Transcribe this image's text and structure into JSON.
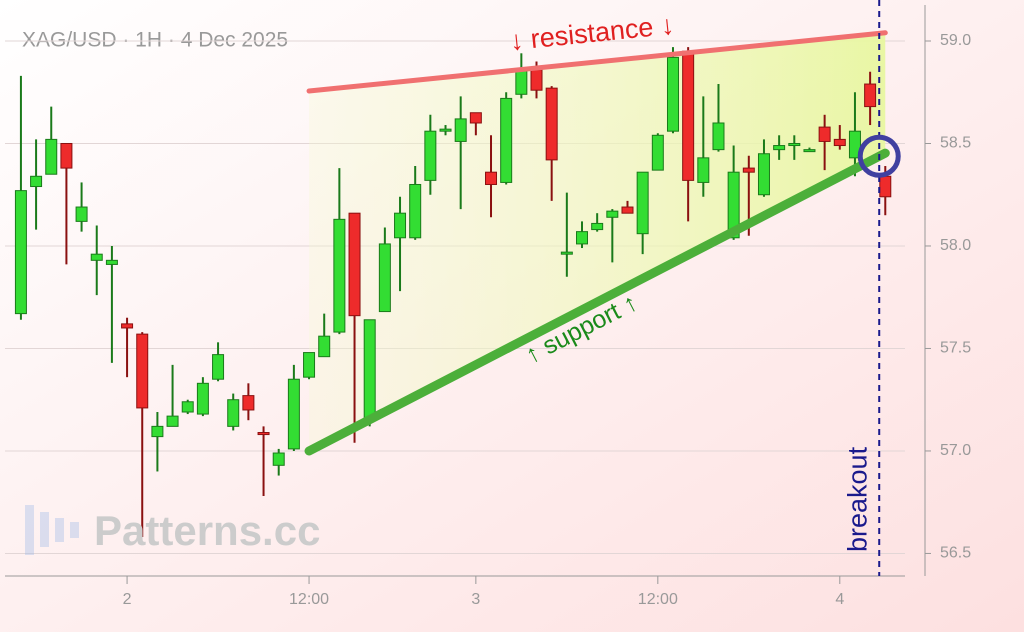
{
  "chart_data": {
    "type": "candlestick",
    "title": "XAG/USD · 1H · 4 Dec 2025",
    "watermark": "Patterns.cc",
    "x": [
      0,
      1,
      2,
      3,
      4,
      5,
      6,
      7,
      8,
      9,
      10,
      11,
      12,
      13,
      14,
      15,
      16,
      17,
      18,
      19,
      20,
      21,
      22,
      23,
      24,
      25,
      26,
      27,
      28,
      29,
      30,
      31,
      32,
      33,
      34,
      35,
      36,
      37,
      38,
      39,
      40,
      41,
      42,
      43,
      44,
      45,
      46,
      47,
      48,
      49,
      50,
      51,
      52,
      53,
      54,
      55,
      56,
      57
    ],
    "open": [
      57.67,
      58.29,
      58.35,
      58.5,
      58.12,
      57.93,
      57.91,
      57.62,
      57.57,
      57.07,
      57.12,
      57.19,
      57.18,
      57.35,
      57.12,
      57.27,
      57.09,
      56.93,
      57.01,
      57.36,
      57.46,
      57.58,
      58.16,
      57.15,
      57.68,
      58.04,
      58.04,
      58.32,
      58.56,
      58.51,
      58.65,
      58.36,
      58.31,
      58.74,
      58.86,
      58.77,
      57.96,
      58.01,
      58.08,
      58.14,
      58.19,
      58.06,
      58.37,
      58.56,
      58.95,
      58.31,
      58.47,
      58.04,
      58.38,
      58.25,
      58.47,
      58.49,
      58.47,
      58.58,
      58.52,
      58.43,
      58.79,
      58.34
    ],
    "high": [
      58.83,
      58.52,
      58.68,
      58.5,
      58.31,
      58.1,
      58.0,
      57.65,
      57.58,
      57.19,
      57.42,
      57.25,
      57.36,
      57.53,
      57.28,
      57.33,
      57.12,
      57.01,
      57.42,
      57.48,
      57.67,
      58.38,
      58.16,
      57.64,
      58.09,
      58.24,
      58.39,
      58.64,
      58.59,
      58.73,
      58.65,
      58.54,
      58.75,
      58.94,
      58.9,
      58.78,
      58.26,
      58.12,
      58.16,
      58.18,
      58.22,
      58.36,
      58.55,
      58.97,
      58.97,
      58.73,
      58.79,
      58.49,
      58.44,
      58.52,
      58.54,
      58.54,
      58.48,
      58.64,
      58.59,
      58.75,
      58.85,
      58.39
    ],
    "low": [
      57.64,
      58.08,
      58.35,
      57.91,
      58.07,
      57.76,
      57.43,
      57.36,
      56.58,
      56.9,
      57.12,
      57.18,
      57.17,
      57.34,
      57.1,
      57.15,
      56.78,
      56.88,
      57.0,
      57.35,
      57.46,
      57.57,
      57.04,
      57.12,
      57.68,
      57.78,
      58.03,
      58.25,
      58.54,
      58.18,
      58.54,
      58.14,
      58.3,
      58.72,
      58.72,
      58.22,
      57.85,
      57.99,
      58.07,
      57.92,
      58.16,
      57.96,
      58.37,
      58.55,
      58.12,
      58.24,
      58.46,
      58.03,
      58.05,
      58.24,
      58.42,
      58.42,
      58.46,
      58.37,
      58.47,
      58.34,
      58.59,
      58.15
    ],
    "close": [
      58.27,
      58.34,
      58.52,
      58.38,
      58.19,
      57.96,
      57.93,
      57.6,
      57.21,
      57.12,
      57.17,
      57.24,
      57.33,
      57.47,
      57.25,
      57.2,
      57.08,
      56.99,
      57.35,
      57.48,
      57.56,
      58.13,
      57.66,
      57.64,
      58.01,
      58.16,
      58.3,
      58.56,
      58.57,
      58.62,
      58.6,
      58.3,
      58.72,
      58.86,
      58.76,
      58.42,
      57.97,
      58.07,
      58.11,
      58.17,
      58.16,
      58.36,
      58.54,
      58.92,
      58.32,
      58.43,
      58.6,
      58.36,
      58.36,
      58.45,
      58.49,
      58.5,
      58.47,
      58.51,
      58.49,
      58.56,
      58.68,
      58.24
    ],
    "up_color": "#33dd33",
    "down_color": "#ee2b2b",
    "xlim": [
      -1.05,
      58.3
    ],
    "xticks": [
      {
        "value": 7,
        "label": "2"
      },
      {
        "value": 19,
        "label": "12:00"
      },
      {
        "value": 30,
        "label": "3"
      },
      {
        "value": 42,
        "label": "12:00"
      },
      {
        "value": 54,
        "label": "4"
      }
    ],
    "ylim": [
      56.39,
      59.2
    ],
    "yticks": [
      56.5,
      {
        "value": 57,
        "label": "57.0"
      },
      57.5,
      {
        "value": 58,
        "label": "58.0"
      },
      58.5,
      {
        "value": 59,
        "label": "59.0"
      }
    ],
    "grid": true,
    "resistance": {
      "label": "↓ resistance ↓",
      "color": "#f07070",
      "x": [
        19,
        57
      ],
      "y": [
        58.756,
        59.04
      ]
    },
    "support": {
      "label": "↑ support ↑",
      "color": "#4caf3a",
      "x": [
        19,
        57
      ],
      "y": [
        57.0,
        58.453
      ]
    },
    "breakout": {
      "label": "breakout",
      "color": "#1a1a8c",
      "x": 56.6
    }
  }
}
